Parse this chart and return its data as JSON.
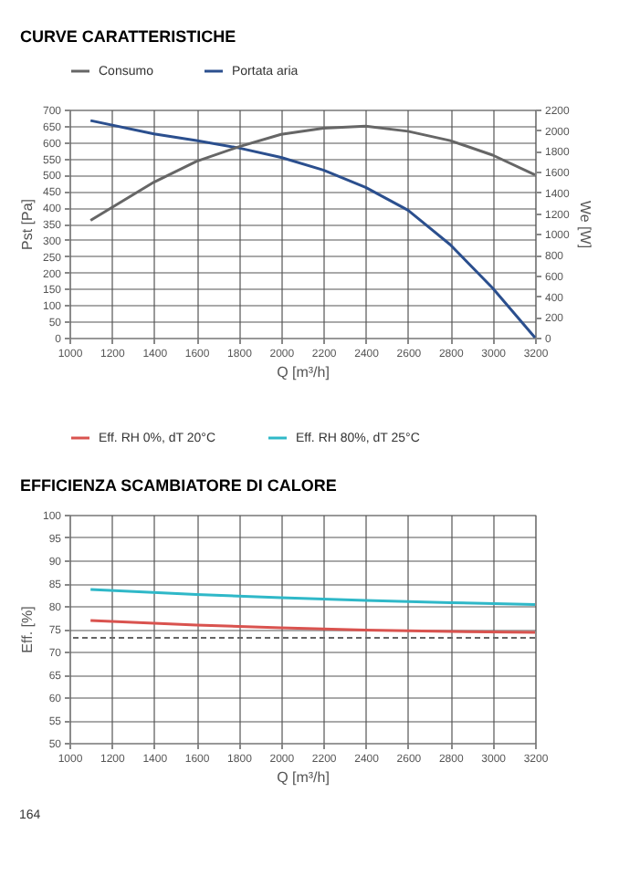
{
  "chart_data": [
    {
      "type": "line",
      "title": "CURVE CARATTERISTICHE",
      "xlabel": "Q [m³/h]",
      "ylabel": "Pst [Pa]",
      "y2label": "We [W]",
      "xlim": [
        1000,
        3200
      ],
      "xticks": [
        1000,
        1200,
        1400,
        1600,
        1800,
        2000,
        2200,
        2400,
        2600,
        2800,
        3000,
        3200
      ],
      "ylim": [
        0,
        700
      ],
      "yticks": [
        0,
        50,
        100,
        150,
        200,
        250,
        300,
        350,
        400,
        450,
        500,
        550,
        600,
        650,
        700
      ],
      "y2lim": [
        0,
        2200
      ],
      "y2ticks": [
        0,
        200,
        400,
        600,
        800,
        1000,
        1200,
        1400,
        1600,
        1800,
        2000,
        2200
      ],
      "x": [
        1100,
        1400,
        1600,
        1800,
        2000,
        2200,
        2400,
        2600,
        2800,
        3000,
        3200
      ],
      "series": [
        {
          "name": "Consumo",
          "color": "#666666",
          "axis": "y2",
          "values": [
            1130,
            1500,
            1700,
            1840,
            1960,
            2020,
            2040,
            1990,
            1900,
            1760,
            1570
          ]
        },
        {
          "name": "Portata aria",
          "color": "#2b4f8e",
          "axis": "y",
          "values": [
            666,
            625,
            605,
            582,
            553,
            514,
            461,
            391,
            285,
            152,
            0
          ]
        }
      ],
      "grid": true,
      "legend": "top left"
    },
    {
      "type": "line",
      "title": "EFFICIENZA SCAMBIATORE DI CALORE",
      "xlabel": "Q [m³/h]",
      "ylabel": "Eff. [%]",
      "xlim": [
        1000,
        3200
      ],
      "xticks": [
        1000,
        1200,
        1400,
        1600,
        1800,
        2000,
        2200,
        2400,
        2600,
        2800,
        3000,
        3200
      ],
      "ylim": [
        50,
        100
      ],
      "yticks": [
        50,
        55,
        60,
        65,
        70,
        75,
        80,
        85,
        90,
        95,
        100
      ],
      "x": [
        1100,
        1600,
        2000,
        2400,
        2800,
        3200
      ],
      "series": [
        {
          "name": "Eff. RH 0%, dT 20°C",
          "color": "#d9534f",
          "values": [
            76.8,
            75.8,
            75.2,
            74.7,
            74.4,
            74.2
          ]
        },
        {
          "name": "Eff. RH 80%, dT 25°C",
          "color": "#2fb8c8",
          "values": [
            83.6,
            82.5,
            81.8,
            81.2,
            80.7,
            80.3
          ]
        }
      ],
      "ref_lines": [
        {
          "axis": "y",
          "value": 73,
          "color": "#666666",
          "line_style": "dashed"
        }
      ],
      "grid": true,
      "legend": "top left",
      "annotations": [
        "164"
      ]
    }
  ]
}
